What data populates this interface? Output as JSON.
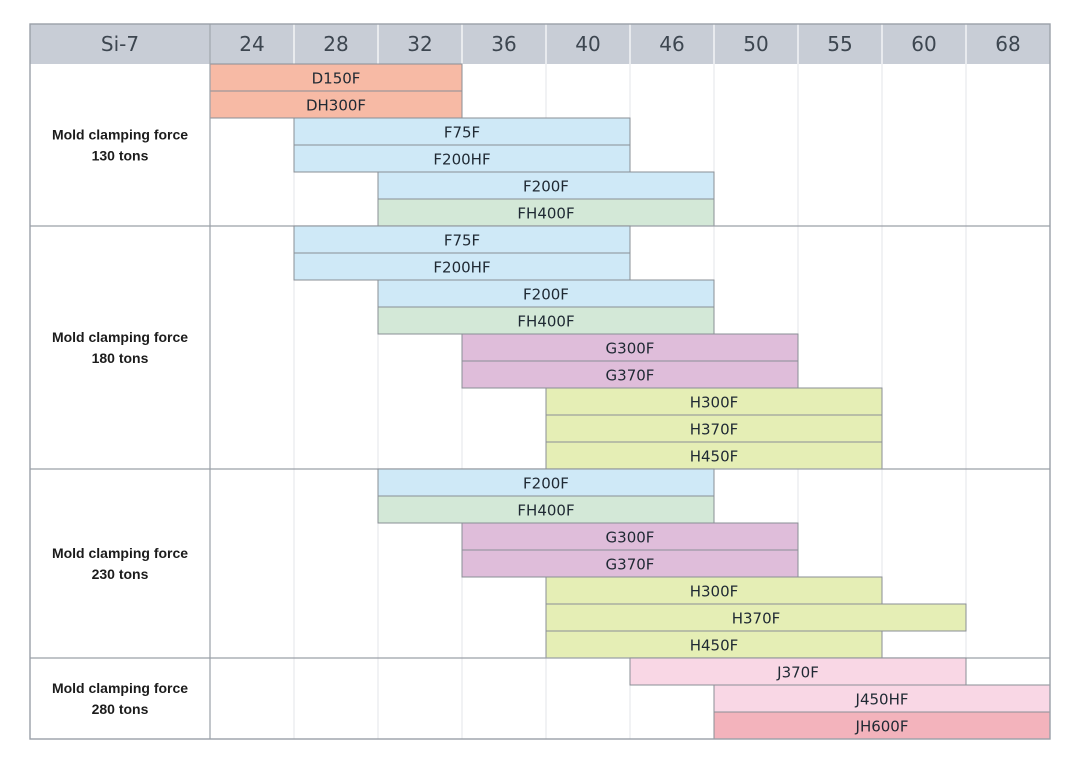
{
  "chart_data": {
    "type": "table",
    "corner_label": "Si-7",
    "columns": [
      "24",
      "28",
      "32",
      "36",
      "40",
      "46",
      "50",
      "55",
      "60",
      "68"
    ],
    "colors": {
      "header_bg": "#c8cdd6",
      "grid_major": "#9aa0a8",
      "grid_minor": "#e3e5e8",
      "bar_border": "#8a8f96",
      "D": "#f7baa5",
      "F": "#cfe9f7",
      "FH": "#d3e8d7",
      "G": "#dfbdda",
      "H": "#e5eeb5",
      "J": "#f9d7e5",
      "JH": "#f3b3bc"
    },
    "groups": [
      {
        "label": [
          "Mold clamping force",
          "130 tons"
        ],
        "rows": [
          {
            "label": "D150F",
            "start": "24",
            "end": "32",
            "color": "D"
          },
          {
            "label": "DH300F",
            "start": "24",
            "end": "32",
            "color": "D"
          },
          {
            "label": "F75F",
            "start": "28",
            "end": "40",
            "color": "F"
          },
          {
            "label": "F200HF",
            "start": "28",
            "end": "40",
            "color": "F"
          },
          {
            "label": "F200F",
            "start": "32",
            "end": "46",
            "color": "F"
          },
          {
            "label": "FH400F",
            "start": "32",
            "end": "46",
            "color": "FH"
          }
        ]
      },
      {
        "label": [
          "Mold clamping force",
          "180 tons"
        ],
        "rows": [
          {
            "label": "F75F",
            "start": "28",
            "end": "40",
            "color": "F"
          },
          {
            "label": "F200HF",
            "start": "28",
            "end": "40",
            "color": "F"
          },
          {
            "label": "F200F",
            "start": "32",
            "end": "46",
            "color": "F"
          },
          {
            "label": "FH400F",
            "start": "32",
            "end": "46",
            "color": "FH"
          },
          {
            "label": "G300F",
            "start": "36",
            "end": "50",
            "color": "G"
          },
          {
            "label": "G370F",
            "start": "36",
            "end": "50",
            "color": "G"
          },
          {
            "label": "H300F",
            "start": "40",
            "end": "55",
            "color": "H"
          },
          {
            "label": "H370F",
            "start": "40",
            "end": "55",
            "color": "H"
          },
          {
            "label": "H450F",
            "start": "40",
            "end": "55",
            "color": "H"
          }
        ]
      },
      {
        "label": [
          "Mold clamping force",
          "230 tons"
        ],
        "rows": [
          {
            "label": "F200F",
            "start": "32",
            "end": "46",
            "color": "F"
          },
          {
            "label": "FH400F",
            "start": "32",
            "end": "46",
            "color": "FH"
          },
          {
            "label": "G300F",
            "start": "36",
            "end": "50",
            "color": "G"
          },
          {
            "label": "G370F",
            "start": "36",
            "end": "50",
            "color": "G"
          },
          {
            "label": "H300F",
            "start": "40",
            "end": "55",
            "color": "H"
          },
          {
            "label": "H370F",
            "start": "40",
            "end": "60",
            "color": "H"
          },
          {
            "label": "H450F",
            "start": "40",
            "end": "55",
            "color": "H"
          }
        ]
      },
      {
        "label": [
          "Mold clamping force",
          "280 tons"
        ],
        "rows": [
          {
            "label": "J370F",
            "start": "46",
            "end": "60",
            "color": "J"
          },
          {
            "label": "J450HF",
            "start": "50",
            "end": "68",
            "color": "J"
          },
          {
            "label": "JH600F",
            "start": "50",
            "end": "68",
            "color": "JH"
          }
        ]
      }
    ]
  }
}
